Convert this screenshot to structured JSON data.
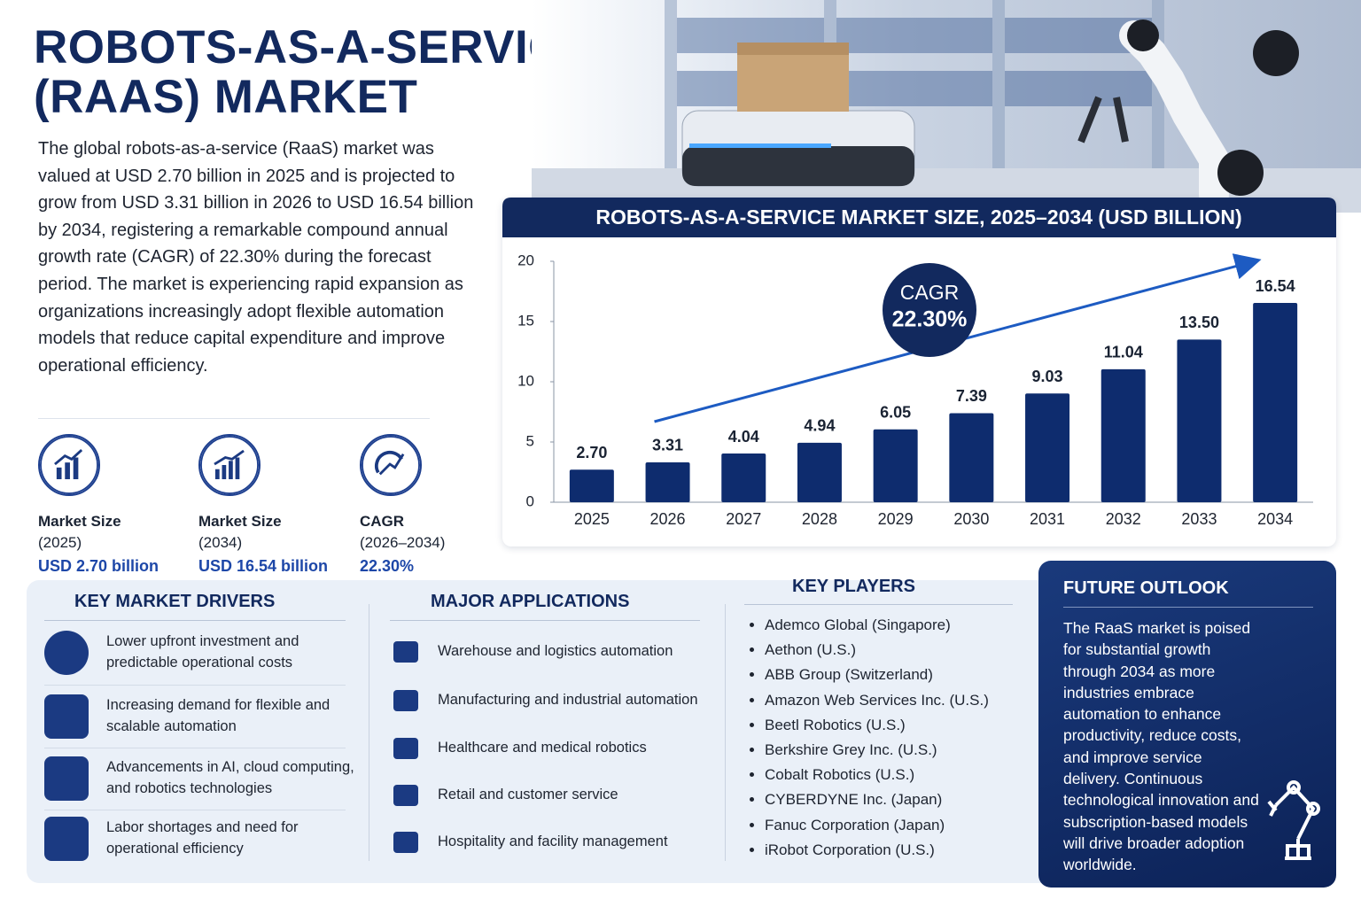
{
  "header": {
    "title": [
      "ROBOTS-AS-A-SERVICE",
      "(RAAS) MARKET"
    ]
  },
  "intro": "The global robots-as-a-service (RaaS) market was valued at USD 2.70 billion in 2025 and is projected to grow from USD 3.31 billion in 2026 to USD 16.54 billion by 2034, registering a remarkable compound annual growth rate (CAGR) of 22.30% during the forecast period. The market is experiencing rapid expansion as organizations increasingly adopt flexible automation models that reduce capital expenditure and improve operational efficiency.",
  "stats": [
    {
      "label": "Market Size",
      "period": "(2025)",
      "value": "USD 2.70 billion"
    },
    {
      "label": "Market Size",
      "period": "(2034)",
      "value": "USD 16.54 billion"
    },
    {
      "label": "CAGR",
      "period": "(2026–2034)",
      "value": "22.30%"
    }
  ],
  "chart_data": {
    "type": "bar",
    "title": "ROBOTS-AS-A-SERVICE MARKET SIZE, 2025–2034 (USD BILLION)",
    "categories": [
      "2025",
      "2026",
      "2027",
      "2028",
      "2029",
      "2030",
      "2031",
      "2032",
      "2033",
      "2034"
    ],
    "values": [
      2.7,
      3.31,
      4.04,
      4.94,
      6.05,
      7.39,
      9.03,
      11.04,
      13.5,
      16.54
    ],
    "value_labels": [
      "2.70",
      "3.31",
      "4.04",
      "4.94",
      "6.05",
      "7.39",
      "9.03",
      "11.04",
      "13.50",
      "16.54"
    ],
    "color": "#0e2c6e",
    "ylim": [
      0,
      20
    ],
    "yticks": [
      0,
      5,
      10,
      15,
      20
    ],
    "grid": false,
    "annotation": {
      "label": "CAGR",
      "value": "22.30%"
    }
  },
  "drivers": {
    "title": "KEY MARKET DRIVERS",
    "items": [
      "Lower upfront investment and predictable operational costs",
      "Increasing demand for flexible and scalable automation",
      "Advancements in AI, cloud computing, and robotics technologies",
      "Labor shortages and need for operational efficiency"
    ]
  },
  "applications": {
    "title": "MAJOR APPLICATIONS",
    "items": [
      "Warehouse and logistics automation",
      "Manufacturing and industrial automation",
      "Healthcare and medical robotics",
      "Retail and customer service",
      "Hospitality and facility management"
    ]
  },
  "key_players": {
    "title": "KEY PLAYERS",
    "items": [
      "Ademco Global (Singapore)",
      "Aethon (U.S.)",
      "ABB Group (Switzerland)",
      "Amazon Web Services Inc. (U.S.)",
      "Beetl Robotics (U.S.)",
      "Berkshire Grey Inc. (U.S.)",
      "Cobalt Robotics (U.S.)",
      "CYBERDYNE Inc. (Japan)",
      "Fanuc Corporation (Japan)",
      "iRobot Corporation (U.S.)"
    ]
  },
  "outlook": {
    "title": "FUTURE OUTLOOK",
    "text": "The RaaS market is poised for substantial growth through 2034 as more industries embrace automation to enhance productivity, reduce costs, and improve service delivery. Continuous technological innovation and subscription-based models will drive broader adoption worldwide."
  }
}
